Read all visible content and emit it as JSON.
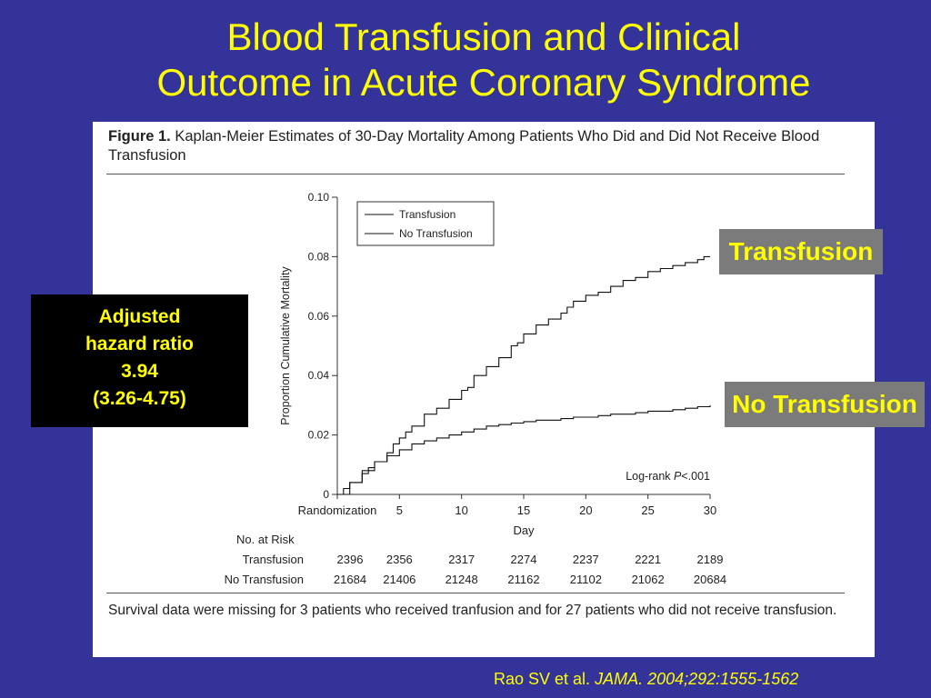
{
  "slide": {
    "title_line1": "Blood Transfusion and Clinical",
    "title_line2": "Outcome in Acute Coronary Syndrome"
  },
  "figure": {
    "label": "Figure 1.",
    "caption": "Kaplan-Meier Estimates of 30-Day Mortality Among Patients Who Did and Did Not Receive Blood Transfusion",
    "footnote": "Survival data were missing for 3 patients who received tranfusion and for 27 patients who did not receive transfusion."
  },
  "chart_data": {
    "type": "line",
    "title": "",
    "xlabel": "Day",
    "ylabel": "Proportion Cumulative Mortality",
    "xlim": [
      0,
      30
    ],
    "ylim": [
      0,
      0.1
    ],
    "x_ticks": [
      0,
      5,
      10,
      15,
      20,
      25,
      30
    ],
    "x_tick_labels": [
      "Randomization",
      "5",
      "10",
      "15",
      "20",
      "25",
      "30"
    ],
    "y_ticks": [
      0,
      0.02,
      0.04,
      0.06,
      0.08,
      0.1
    ],
    "y_tick_labels": [
      "0",
      "0.02",
      "0.04",
      "0.06",
      "0.08",
      "0.10"
    ],
    "legend_position": "top-left",
    "annotation": "Log-rank P<.001",
    "series": [
      {
        "name": "Transfusion",
        "x": [
          0,
          0.5,
          1,
          2,
          2.5,
          3,
          4,
          4.5,
          5,
          5.5,
          6,
          7,
          8,
          9,
          10,
          10.5,
          11,
          12,
          13,
          14,
          14.5,
          15,
          16,
          17,
          18,
          18.5,
          19,
          20,
          21,
          22,
          23,
          24,
          25,
          26,
          27,
          28,
          29,
          29.5,
          30
        ],
        "y": [
          0,
          0.002,
          0.004,
          0.007,
          0.009,
          0.011,
          0.014,
          0.017,
          0.019,
          0.021,
          0.023,
          0.027,
          0.029,
          0.032,
          0.035,
          0.036,
          0.04,
          0.043,
          0.046,
          0.05,
          0.051,
          0.054,
          0.057,
          0.059,
          0.061,
          0.063,
          0.065,
          0.067,
          0.068,
          0.07,
          0.072,
          0.073,
          0.075,
          0.076,
          0.077,
          0.078,
          0.079,
          0.08,
          0.08
        ]
      },
      {
        "name": "No Transfusion",
        "x": [
          0,
          1,
          2,
          3,
          4,
          5,
          6,
          7,
          8,
          9,
          10,
          11,
          12,
          13,
          14,
          15,
          16,
          17,
          18,
          19,
          20,
          21,
          22,
          23,
          24,
          25,
          26,
          27,
          28,
          29,
          30
        ],
        "y": [
          0,
          0.004,
          0.008,
          0.011,
          0.013,
          0.015,
          0.017,
          0.018,
          0.019,
          0.02,
          0.021,
          0.022,
          0.023,
          0.0235,
          0.024,
          0.0245,
          0.025,
          0.025,
          0.0255,
          0.026,
          0.026,
          0.0265,
          0.027,
          0.027,
          0.0275,
          0.028,
          0.028,
          0.0285,
          0.029,
          0.0295,
          0.03
        ]
      }
    ],
    "risk_table": {
      "heading": "No. at Risk",
      "rows": [
        {
          "label": "Transfusion",
          "values": [
            "2396",
            "2356",
            "2317",
            "2274",
            "2237",
            "2221",
            "2189"
          ]
        },
        {
          "label": "No Transfusion",
          "values": [
            "21684",
            "21406",
            "21248",
            "21162",
            "21102",
            "21062",
            "20684"
          ]
        }
      ]
    }
  },
  "hazard_box": {
    "line1": "Adjusted",
    "line2": "hazard ratio",
    "line3": "3.94",
    "line4": "(3.26-4.75)"
  },
  "callouts": {
    "transfusion": "Transfusion",
    "no_transfusion": "No Transfusion"
  },
  "citation": {
    "authors": "Rao SV et al. ",
    "journal": "JAMA. 2004;292:1555-1562"
  },
  "colors": {
    "background": "#33339a",
    "title": "#ffff00",
    "callout_bg": "#7b7b7b",
    "hazard_bg": "#000000"
  }
}
